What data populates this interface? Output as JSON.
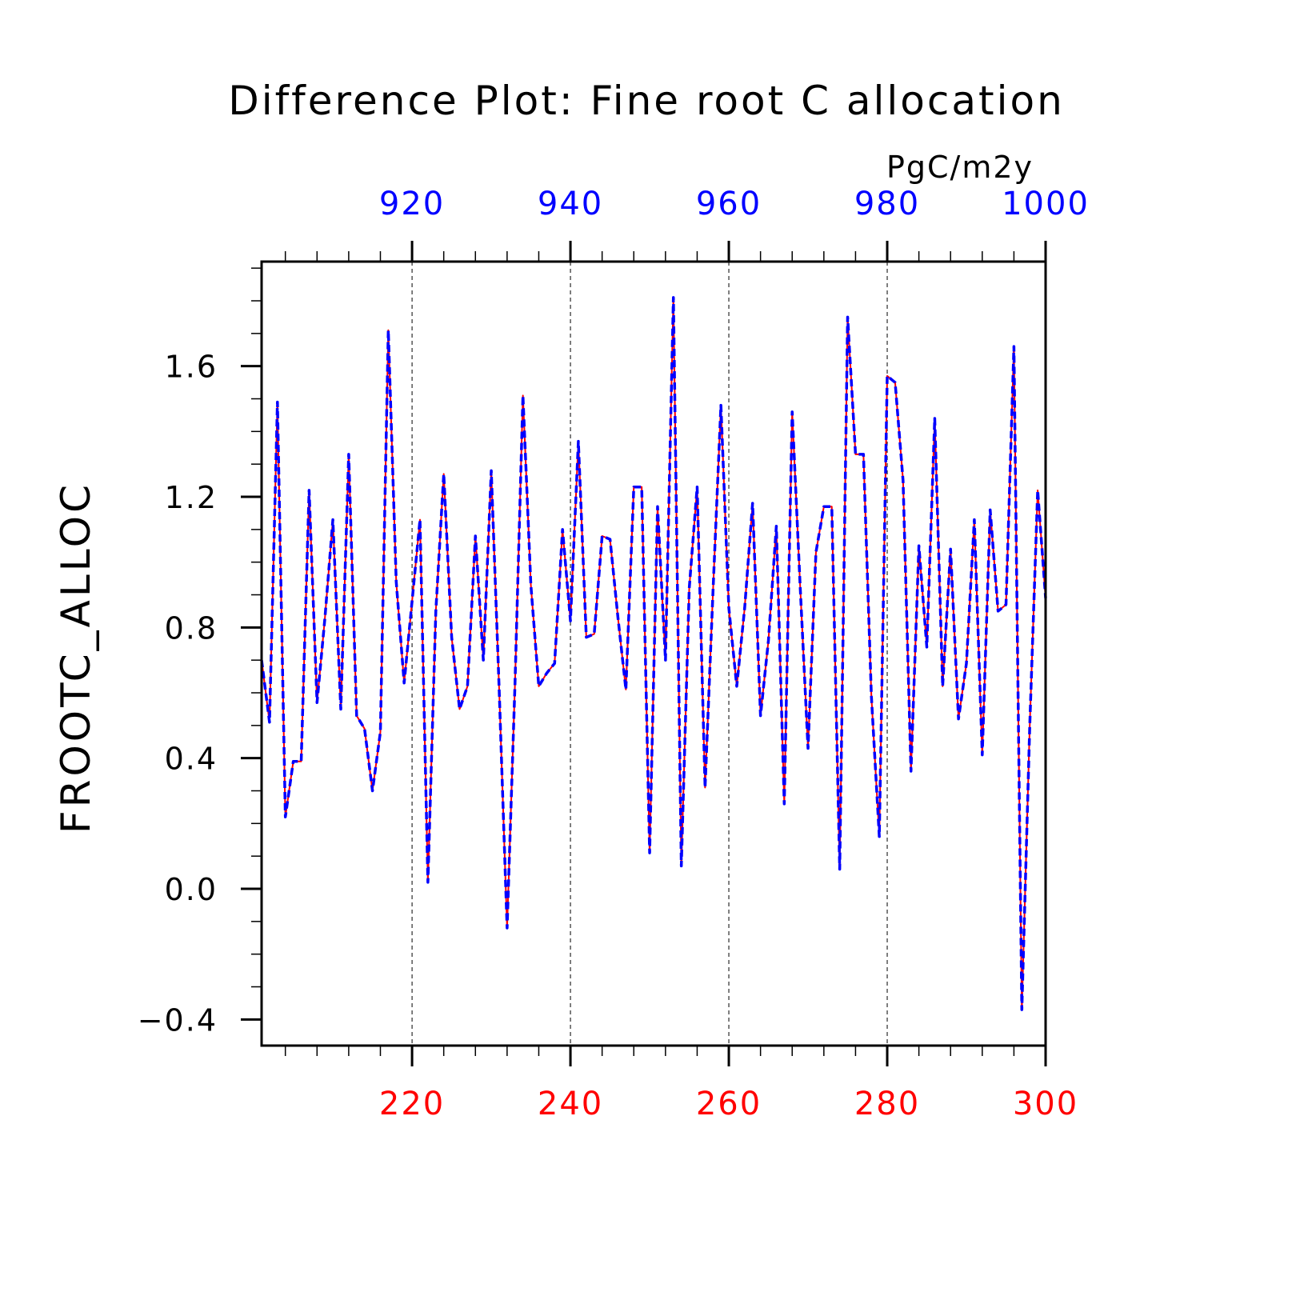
{
  "chart_data": {
    "type": "line",
    "title": "Difference Plot: Fine root C allocation",
    "units_label": "PgC/m2y",
    "ylabel": "FROOTC_ALLOC",
    "ylim": [
      -0.48,
      1.92
    ],
    "y_ticks": [
      "−0.4",
      "0.0",
      "0.4",
      "0.8",
      "1.2",
      "1.6"
    ],
    "y_tick_values": [
      -0.4,
      0.0,
      0.4,
      0.8,
      1.2,
      1.6
    ],
    "x_bottom": {
      "range": [
        201,
        300
      ],
      "ticks": [
        "220",
        "240",
        "260",
        "280",
        "300"
      ],
      "tick_values": [
        220,
        240,
        260,
        280,
        300
      ],
      "color": "#ff0000"
    },
    "x_top": {
      "range": [
        901,
        1000
      ],
      "ticks": [
        "920",
        "940",
        "960",
        "980",
        "1000"
      ],
      "tick_values": [
        920,
        940,
        960,
        980,
        1000
      ],
      "color": "#0000ff"
    },
    "grid": "vertical dashed at major x ticks",
    "series": [
      {
        "color": "#ff0000",
        "style": "solid",
        "x_start": 201,
        "x_step": 1,
        "values": [
          0.7,
          0.51,
          1.49,
          0.22,
          0.39,
          0.39,
          1.22,
          0.57,
          0.83,
          1.13,
          0.55,
          1.33,
          0.53,
          0.49,
          0.3,
          0.48,
          1.71,
          0.94,
          0.63,
          0.88,
          1.13,
          0.02,
          0.85,
          1.27,
          0.77,
          0.55,
          0.62,
          1.08,
          0.7,
          1.28,
          0.61,
          -0.12,
          0.63,
          1.51,
          0.93,
          0.62,
          0.66,
          0.69,
          1.1,
          0.82,
          1.37,
          0.77,
          0.78,
          1.08,
          1.07,
          0.83,
          0.61,
          1.23,
          1.23,
          0.11,
          1.17,
          0.7,
          1.81,
          0.07,
          0.92,
          1.23,
          0.31,
          0.91,
          1.48,
          0.86,
          0.62,
          0.86,
          1.18,
          0.53,
          0.76,
          1.11,
          0.26,
          1.46,
          0.93,
          0.43,
          1.03,
          1.17,
          1.17,
          0.06,
          1.75,
          1.33,
          1.33,
          0.59,
          0.16,
          1.57,
          1.55,
          1.25,
          0.36,
          1.05,
          0.74,
          1.44,
          0.62,
          1.04,
          0.52,
          0.69,
          1.13,
          0.41,
          1.16,
          0.85,
          0.87,
          1.66,
          -0.37,
          0.5,
          1.22,
          0.89
        ]
      },
      {
        "color": "#0000ff",
        "style": "dashed",
        "x_start": 201,
        "x_step": 1,
        "values": [
          0.7,
          0.51,
          1.49,
          0.22,
          0.39,
          0.39,
          1.22,
          0.57,
          0.83,
          1.13,
          0.55,
          1.33,
          0.53,
          0.49,
          0.3,
          0.48,
          1.71,
          0.94,
          0.63,
          0.88,
          1.13,
          0.02,
          0.85,
          1.27,
          0.77,
          0.55,
          0.62,
          1.08,
          0.7,
          1.28,
          0.61,
          -0.12,
          0.63,
          1.51,
          0.93,
          0.62,
          0.66,
          0.69,
          1.1,
          0.82,
          1.37,
          0.77,
          0.78,
          1.08,
          1.07,
          0.83,
          0.61,
          1.23,
          1.23,
          0.11,
          1.17,
          0.7,
          1.81,
          0.07,
          0.92,
          1.23,
          0.31,
          0.91,
          1.48,
          0.86,
          0.62,
          0.86,
          1.18,
          0.53,
          0.76,
          1.11,
          0.26,
          1.46,
          0.93,
          0.43,
          1.03,
          1.17,
          1.17,
          0.06,
          1.75,
          1.33,
          1.33,
          0.59,
          0.16,
          1.57,
          1.55,
          1.25,
          0.36,
          1.05,
          0.74,
          1.44,
          0.62,
          1.04,
          0.52,
          0.69,
          1.13,
          0.41,
          1.16,
          0.85,
          0.87,
          1.66,
          -0.37,
          0.5,
          1.22,
          0.89
        ]
      }
    ]
  }
}
